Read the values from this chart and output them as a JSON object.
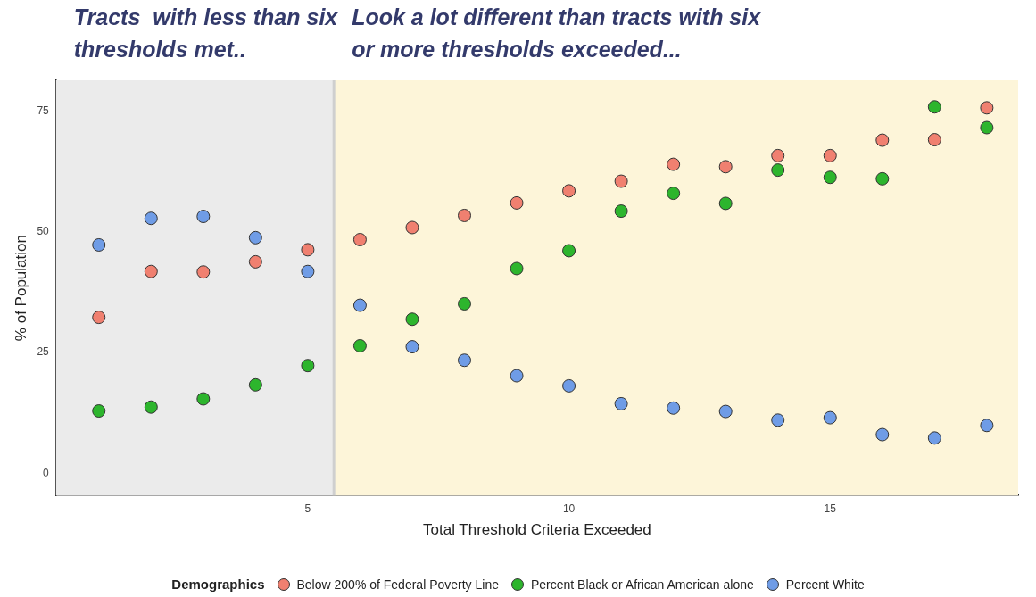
{
  "chart_data": {
    "type": "scatter",
    "xlabel": "Total Threshold Criteria Exceeded",
    "ylabel": "% of Population",
    "legend_title": "Demographics",
    "legend": "bottom",
    "grid": false,
    "marker": "circle",
    "x": [
      1,
      2,
      3,
      4,
      5,
      6,
      7,
      8,
      9,
      10,
      11,
      12,
      13,
      14,
      15,
      16,
      17,
      18
    ],
    "xlim": [
      0.18,
      18.6
    ],
    "xticks": [
      5,
      10,
      15
    ],
    "ylim": [
      -4.6,
      81.4
    ],
    "yticks": [
      0,
      25,
      50,
      75
    ],
    "series": [
      {
        "name": "Below 200% of Federal Poverty Line",
        "color": "#f08070",
        "values": [
          32.3,
          41.8,
          41.7,
          43.8,
          46.3,
          48.4,
          50.9,
          53.4,
          56.0,
          58.5,
          60.5,
          64.0,
          63.5,
          65.8,
          65.8,
          69.0,
          69.1,
          75.7
        ]
      },
      {
        "name": "Percent Black or African American alone",
        "color": "#2db52d",
        "values": [
          12.9,
          13.7,
          15.4,
          18.3,
          22.3,
          26.4,
          31.9,
          35.1,
          42.4,
          46.1,
          54.3,
          58.0,
          55.9,
          62.8,
          61.3,
          61.0,
          75.9,
          71.6
        ]
      },
      {
        "name": "Percent White",
        "color": "#6f9ce6",
        "values": [
          47.3,
          52.8,
          53.2,
          48.8,
          41.8,
          34.8,
          26.2,
          23.4,
          20.2,
          18.1,
          14.4,
          13.5,
          12.8,
          11.0,
          11.5,
          8.0,
          7.3,
          9.9
        ]
      }
    ],
    "ref_lines": [
      {
        "axis": "x",
        "value": 5.5,
        "color": "#cfcfcf"
      }
    ],
    "bands": [
      {
        "axis": "x",
        "from": 0.18,
        "to": 5.5,
        "color": "#ebebeb",
        "label": "Tracts  with less than six thresholds met.."
      },
      {
        "axis": "x",
        "from": 5.5,
        "to": 18.6,
        "color": "#fdf5d9",
        "label": "Look a lot different than tracts with six or more thresholds exceeded..."
      }
    ]
  }
}
